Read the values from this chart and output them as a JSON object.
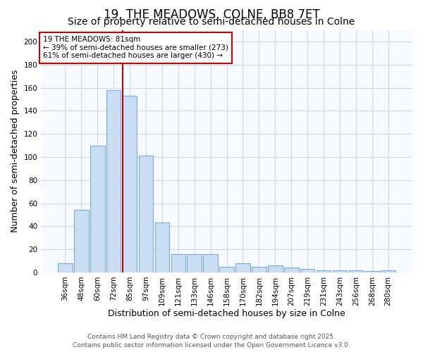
{
  "title": "19, THE MEADOWS, COLNE, BB8 7ET",
  "subtitle": "Size of property relative to semi-detached houses in Colne",
  "xlabel": "Distribution of semi-detached houses by size in Colne",
  "ylabel": "Number of semi-detached properties",
  "categories": [
    "36sqm",
    "48sqm",
    "60sqm",
    "72sqm",
    "85sqm",
    "97sqm",
    "109sqm",
    "121sqm",
    "133sqm",
    "146sqm",
    "158sqm",
    "170sqm",
    "182sqm",
    "194sqm",
    "207sqm",
    "219sqm",
    "231sqm",
    "243sqm",
    "256sqm",
    "268sqm",
    "280sqm"
  ],
  "values": [
    8,
    54,
    110,
    158,
    153,
    101,
    43,
    16,
    16,
    16,
    5,
    8,
    5,
    6,
    4,
    3,
    2,
    2,
    2,
    1,
    2
  ],
  "bar_color": "#c9ddf5",
  "bar_edge_color": "#7aacd6",
  "vline_color": "#cc0000",
  "vline_index": 4,
  "annotation_text": "19 THE MEADOWS: 81sqm\n← 39% of semi-detached houses are smaller (273)\n61% of semi-detached houses are larger (430) →",
  "annotation_box_facecolor": "#ffffff",
  "annotation_box_edgecolor": "#cc0000",
  "ylim": [
    0,
    210
  ],
  "yticks": [
    0,
    20,
    40,
    60,
    80,
    100,
    120,
    140,
    160,
    180,
    200
  ],
  "footer1": "Contains HM Land Registry data © Crown copyright and database right 2025.",
  "footer2": "Contains public sector information licensed under the Open Government Licence v3.0.",
  "bg_color": "#ffffff",
  "plot_bg_color": "#f7faff",
  "grid_color": "#c8d8ee",
  "title_fontsize": 12,
  "subtitle_fontsize": 10,
  "label_fontsize": 9,
  "tick_fontsize": 7.5,
  "annotation_fontsize": 7.5,
  "footer_fontsize": 6.5
}
